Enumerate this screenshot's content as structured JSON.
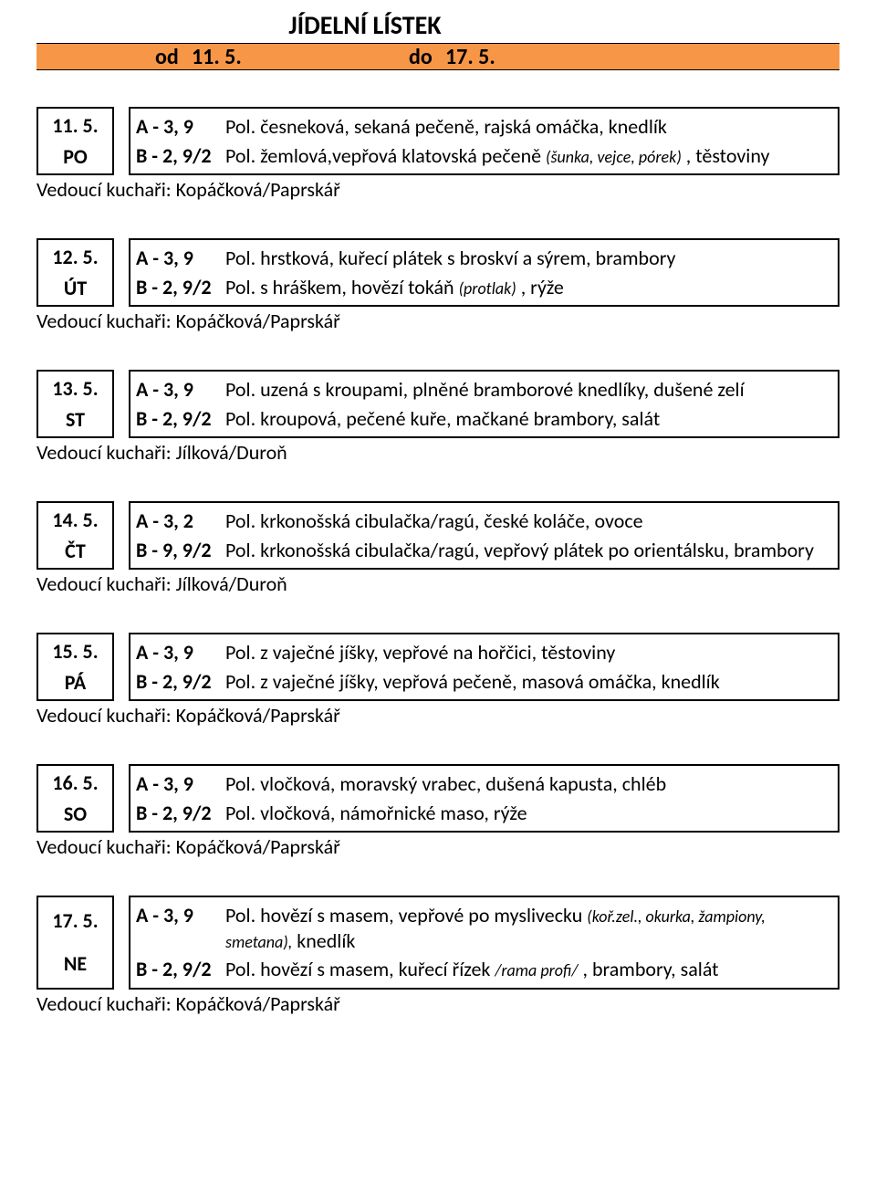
{
  "colors": {
    "accent_bar": "#f79646",
    "border": "#000000",
    "text": "#000000",
    "background": "#ffffff"
  },
  "header": {
    "title": "JÍDELNÍ LÍSTEK",
    "from_label": "od",
    "from_date": "11. 5.",
    "to_label": "do",
    "to_date": "17. 5."
  },
  "chef_prefix": "Vedoucí kuchaři: ",
  "days": [
    {
      "date": "11. 5.",
      "day": "PO",
      "meals": [
        {
          "code": "A - 3, 9",
          "segments": [
            {
              "t": "Pol. česneková, sekaná pečeně, rajská omáčka, knedlík",
              "s": "regular"
            }
          ]
        },
        {
          "code": "B - 2, 9/2",
          "segments": [
            {
              "t": "Pol. žemlová,vepřová klatovská pečeně ",
              "s": "regular"
            },
            {
              "t": "(šunka, vejce, pórek)",
              "s": "paren"
            },
            {
              "t": " , těstoviny",
              "s": "regular"
            }
          ]
        }
      ],
      "chef": "Kopáčková/Paprskář"
    },
    {
      "date": "12. 5.",
      "day": "ÚT",
      "meals": [
        {
          "code": " A - 3, 9",
          "segments": [
            {
              "t": "Pol. hrstková, kuřecí plátek s broskví a sýrem, brambory",
              "s": "regular"
            }
          ]
        },
        {
          "code": "B - 2, 9/2",
          "segments": [
            {
              "t": "Pol. s hráškem, hovězí tokáň ",
              "s": "regular"
            },
            {
              "t": "(protlak)",
              "s": "paren"
            },
            {
              "t": " , rýže",
              "s": "regular"
            }
          ]
        }
      ],
      "chef": "Kopáčková/Paprskář"
    },
    {
      "date": "13. 5.",
      "day": "ST",
      "meals": [
        {
          "code": " A - 3, 9",
          "segments": [
            {
              "t": "Pol. uzená s kroupami, plněné bramborové knedlíky, dušené zelí",
              "s": "regular"
            }
          ]
        },
        {
          "code": "B - 2, 9/2",
          "segments": [
            {
              "t": "Pol. kroupová, pečené kuře, mačkané brambory, salát",
              "s": "regular"
            }
          ]
        }
      ],
      "chef": "Jílková/Duroň"
    },
    {
      "date": "14. 5.",
      "day": "ČT",
      "meals": [
        {
          "code": " A - 3, 2",
          "segments": [
            {
              "t": "Pol. krkonošská cibulačka/ragú, české koláče, ovoce",
              "s": "regular"
            }
          ]
        },
        {
          "code": "B - 9, 9/2",
          "segments": [
            {
              "t": "Pol. krkonošská cibulačka/ragú, vepřový plátek po orientálsku, brambory",
              "s": "regular"
            }
          ]
        }
      ],
      "chef": "Jílková/Duroň"
    },
    {
      "date": "15. 5.",
      "day": "PÁ",
      "meals": [
        {
          "code": " A - 3, 9",
          "segments": [
            {
              "t": "Pol. z vaječné jíšky, vepřové na hořčici, těstoviny",
              "s": "regular"
            }
          ]
        },
        {
          "code": "B - 2, 9/2",
          "segments": [
            {
              "t": "Pol. z vaječné jíšky, vepřová pečeně, masová omáčka, knedlík",
              "s": "regular"
            }
          ]
        }
      ],
      "chef": "Kopáčková/Paprskář"
    },
    {
      "date": "16. 5.",
      "day": "SO",
      "meals": [
        {
          "code": " A - 3, 9",
          "segments": [
            {
              "t": "Pol. vločková, moravský vrabec, dušená kapusta, chléb",
              "s": "regular"
            }
          ]
        },
        {
          "code": "B - 2, 9/2",
          "segments": [
            {
              "t": "Pol. vločková, námořnické maso, rýže",
              "s": "regular"
            }
          ]
        }
      ],
      "chef": "Kopáčková/Paprskář"
    },
    {
      "date": "17. 5.",
      "day": "NE",
      "meals": [
        {
          "code": " A - 3, 9",
          "segments": [
            {
              "t": "Pol. hovězí s masem, vepřové po myslivecku ",
              "s": "regular"
            },
            {
              "t": "(koř.zel., okurka, žampiony, smetana),",
              "s": "paren"
            },
            {
              "t": " knedlík",
              "s": "regular"
            }
          ]
        },
        {
          "code": "B - 2, 9/2",
          "segments": [
            {
              "t": "Pol. hovězí s masem, kuřecí řízek ",
              "s": "regular"
            },
            {
              "t": "/rama profi/",
              "s": "paren"
            },
            {
              "t": " , brambory, salát",
              "s": "regular"
            }
          ]
        }
      ],
      "chef": "Kopáčková/Paprskář"
    }
  ]
}
